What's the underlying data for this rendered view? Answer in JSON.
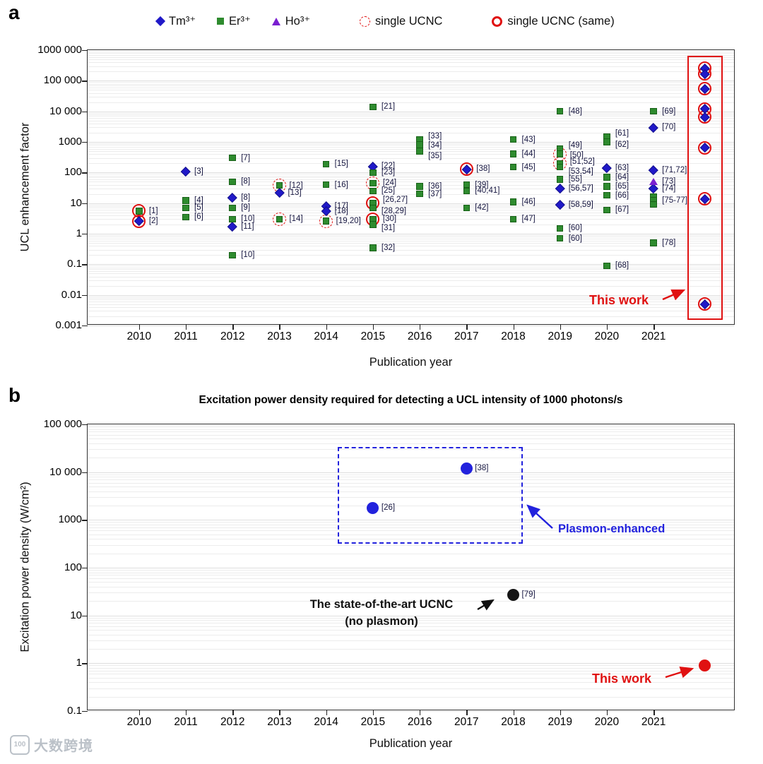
{
  "panel_labels": {
    "a": "a",
    "b": "b"
  },
  "watermark": {
    "logo": "100",
    "text": "大数跨境"
  },
  "chart_data": [
    {
      "id": "a",
      "type": "scatter",
      "xlabel": "Publication year",
      "ylabel": "UCL enhancement factor",
      "ylog": true,
      "ylim": [
        0.001,
        1000000
      ],
      "xlim": [
        2008.9,
        2022.75
      ],
      "xticks": [
        2010,
        2011,
        2012,
        2013,
        2014,
        2015,
        2016,
        2017,
        2018,
        2019,
        2020,
        2021
      ],
      "ytick_labels": [
        "1000 000",
        "100 000",
        "10 000",
        "1000",
        "100",
        "10",
        "1",
        "0.1",
        "0.01",
        "0.001"
      ],
      "grid": true,
      "legend_position": "top",
      "legend": [
        {
          "label": "Tm³⁺",
          "marker": "diamond",
          "color": "#2019c8"
        },
        {
          "label": "Er³⁺",
          "marker": "square",
          "color": "#2e8b2e"
        },
        {
          "label": "Ho³⁺",
          "marker": "triangle",
          "color": "#7a1fd0"
        },
        {
          "label": "single UCNC",
          "marker": "dashed-red-circle",
          "color": "#e01111"
        },
        {
          "label": "single UCNC (same)",
          "marker": "solid-red-circle",
          "color": "#e01111"
        }
      ],
      "annotations": [
        {
          "text": "This work",
          "color": "#e01111"
        }
      ],
      "series": [
        {
          "name": "Tm3+",
          "slug": "tm-point",
          "marker": "diamond",
          "color": "#2019c8",
          "points": [
            {
              "x": 2010,
              "y": 2.6,
              "ref": "[2]",
              "circle": "solid"
            },
            {
              "x": 2011,
              "y": 110,
              "ref": "[3]"
            },
            {
              "x": 2012,
              "y": 15,
              "ref": "[8]"
            },
            {
              "x": 2012,
              "y": 1.7,
              "ref": "[11]"
            },
            {
              "x": 2013,
              "y": 22,
              "ref": "[13]"
            },
            {
              "x": 2014,
              "y": 8,
              "ref": "[17]"
            },
            {
              "x": 2014,
              "y": 5.5,
              "ref": "[18]"
            },
            {
              "x": 2015,
              "y": 160,
              "ref": "[22]"
            },
            {
              "x": 2017,
              "y": 130,
              "ref": "[38]",
              "circle": "solid"
            },
            {
              "x": 2019,
              "y": 30,
              "ref": "[56,57]"
            },
            {
              "x": 2019,
              "y": 9,
              "ref": "[58,59]"
            },
            {
              "x": 2020,
              "y": 140,
              "ref": "[63]"
            },
            {
              "x": 2021,
              "y": 3000,
              "ref": "[70]"
            },
            {
              "x": 2021,
              "y": 120,
              "ref": "[71,72]"
            },
            {
              "x": 2021,
              "y": 30,
              "ref": "[74]"
            }
          ]
        },
        {
          "name": "Er3+",
          "slug": "er-point",
          "marker": "square",
          "color": "#2e8b2e",
          "points": [
            {
              "x": 2010,
              "y": 5.5,
              "ref": "[1]",
              "circle": "solid"
            },
            {
              "x": 2011,
              "y": 12,
              "ref": "[4]"
            },
            {
              "x": 2011,
              "y": 7,
              "ref": "[5]"
            },
            {
              "x": 2011,
              "y": 3.5,
              "ref": "[6]"
            },
            {
              "x": 2012,
              "y": 300,
              "ref": "[7]"
            },
            {
              "x": 2012,
              "y": 50,
              "ref": "[8]"
            },
            {
              "x": 2012,
              "y": 7,
              "ref": "[9]"
            },
            {
              "x": 2012,
              "y": 3,
              "ref": "[10]"
            },
            {
              "x": 2012,
              "y": 0.2,
              "ref": "[10]"
            },
            {
              "x": 2013,
              "y": 38,
              "ref": "[12]",
              "circle": "dashed"
            },
            {
              "x": 2013,
              "y": 3,
              "ref": "[14]",
              "circle": "dashed"
            },
            {
              "x": 2014,
              "y": 190,
              "ref": "[15]"
            },
            {
              "x": 2014,
              "y": 40,
              "ref": "[16]"
            },
            {
              "x": 2014,
              "y": 2.6,
              "ref": "[19,20]",
              "circle": "dashed"
            },
            {
              "x": 2015,
              "y": 14000,
              "ref": "[21]"
            },
            {
              "x": 2015,
              "y": 100,
              "ref": "[23]"
            },
            {
              "x": 2015,
              "y": 45,
              "ref": "[24]",
              "circle": "dashed"
            },
            {
              "x": 2015,
              "y": 25,
              "ref": "[25]"
            },
            {
              "x": 2015,
              "y": 10,
              "ref": "[26,27]",
              "circle": "solid",
              "dy": -5
            },
            {
              "x": 2015,
              "y": 7,
              "ref": "[28,29]",
              "dy": 5
            },
            {
              "x": 2015,
              "y": 3,
              "ref": "[30]",
              "circle": "solid"
            },
            {
              "x": 2015,
              "y": 2,
              "ref": "[31]",
              "dy": 5
            },
            {
              "x": 2015,
              "y": 0.35,
              "ref": "[32]"
            },
            {
              "x": 2016,
              "y": 1200,
              "ref": "[33]",
              "dy": -5
            },
            {
              "x": 2016,
              "y": 800,
              "ref": "[34]",
              "dy": 1
            },
            {
              "x": 2016,
              "y": 500,
              "ref": "[35]",
              "dy": 7
            },
            {
              "x": 2016,
              "y": 35,
              "ref": "[36]"
            },
            {
              "x": 2016,
              "y": 20,
              "ref": "[37]"
            },
            {
              "x": 2017,
              "y": 40,
              "ref": "[39]"
            },
            {
              "x": 2017,
              "y": 25,
              "ref": "[40,41]"
            },
            {
              "x": 2017,
              "y": 7,
              "ref": "[42]"
            },
            {
              "x": 2018,
              "y": 1200,
              "ref": "[43]"
            },
            {
              "x": 2018,
              "y": 400,
              "ref": "[44]"
            },
            {
              "x": 2018,
              "y": 150,
              "ref": "[45]"
            },
            {
              "x": 2018,
              "y": 11,
              "ref": "[46]"
            },
            {
              "x": 2018,
              "y": 3,
              "ref": "[47]"
            },
            {
              "x": 2019,
              "y": 10000,
              "ref": "[48]"
            },
            {
              "x": 2019,
              "y": 600,
              "ref": "[49]",
              "dy": -5
            },
            {
              "x": 2019,
              "y": 400,
              "ref": "[50]",
              "circle": "dashed",
              "dy": 2
            },
            {
              "x": 2019,
              "y": 200,
              "ref": "[51,52]",
              "circle": "dashed",
              "dy": -2
            },
            {
              "x": 2019,
              "y": 150,
              "ref": "[53,54]",
              "dy": 6
            },
            {
              "x": 2019,
              "y": 60,
              "ref": "[55]"
            },
            {
              "x": 2019,
              "y": 1.5,
              "ref": "[60]"
            },
            {
              "x": 2019,
              "y": 0.7,
              "ref": "[60]"
            },
            {
              "x": 2020,
              "y": 1500,
              "ref": "[61]",
              "dy": -4
            },
            {
              "x": 2020,
              "y": 1000,
              "ref": "[62]",
              "dy": 4
            },
            {
              "x": 2020,
              "y": 70,
              "ref": "[64]"
            },
            {
              "x": 2020,
              "y": 35,
              "ref": "[65]"
            },
            {
              "x": 2020,
              "y": 18,
              "ref": "[66]"
            },
            {
              "x": 2020,
              "y": 6,
              "ref": "[67]"
            },
            {
              "x": 2020,
              "y": 0.09,
              "ref": "[68]"
            },
            {
              "x": 2021,
              "y": 10000,
              "ref": "[69]"
            },
            {
              "x": 2021,
              "y": 16,
              "ref": ""
            },
            {
              "x": 2021,
              "y": 12,
              "ref": "[75-77]"
            },
            {
              "x": 2021,
              "y": 9,
              "ref": ""
            },
            {
              "x": 2021,
              "y": 0.5,
              "ref": "[78]"
            }
          ]
        },
        {
          "name": "Ho3+",
          "slug": "ho-point",
          "marker": "triangle",
          "color": "#7a1fd0",
          "points": [
            {
              "x": 2021,
              "y": 50,
              "ref": "[73]"
            }
          ]
        }
      ],
      "this_work": {
        "x": 2022.1,
        "marker": "diamond",
        "color": "#2019c8",
        "circle": "solid",
        "box_y": [
          0.0015,
          650000
        ],
        "points": [
          260000,
          170000,
          55000,
          12000,
          6500,
          650,
          14,
          0.005
        ]
      }
    },
    {
      "id": "b",
      "type": "scatter",
      "title": "Excitation power density required for detecting a UCL intensity of 1000 photons/s",
      "xlabel": "Publication year",
      "ylabel": "Excitation power density (W/cm²)",
      "ylog": true,
      "ylim": [
        0.1,
        100000
      ],
      "xlim": [
        2008.9,
        2022.75
      ],
      "xticks": [
        2010,
        2011,
        2012,
        2013,
        2014,
        2015,
        2016,
        2017,
        2018,
        2019,
        2020,
        2021
      ],
      "ytick_labels": [
        "100 000",
        "10 000",
        "1000",
        "100",
        "10",
        "1",
        "0.1"
      ],
      "grid": true,
      "dashed_box": {
        "x": [
          2014.25,
          2018.2
        ],
        "y": [
          320,
          34000
        ],
        "color": "#2222dd"
      },
      "annotations": [
        {
          "text": "Plasmon-enhanced",
          "color": "#2222dd"
        },
        {
          "text": "The state-of-the-art UCNC",
          "color": "#111111"
        },
        {
          "text": "(no plasmon)",
          "color": "#111111"
        },
        {
          "text": "This work",
          "color": "#e01111"
        }
      ],
      "series": [
        {
          "name": "Plasmon-enhanced UCNC",
          "slug": "plasmon-point",
          "marker": "circle",
          "color": "#2222dd",
          "points": [
            {
              "x": 2015,
              "y": 1800,
              "ref": "[26]"
            },
            {
              "x": 2017,
              "y": 12000,
              "ref": "[38]"
            }
          ]
        },
        {
          "name": "State-of-the-art UCNC (no plasmon)",
          "slug": "ucnc-point",
          "marker": "circle",
          "color": "#151515",
          "points": [
            {
              "x": 2018,
              "y": 27,
              "ref": "[79]"
            }
          ]
        },
        {
          "name": "This work",
          "slug": "this-work-point",
          "marker": "circle",
          "color": "#e01111",
          "points": [
            {
              "x": 2022.1,
              "y": 0.9,
              "ref": ""
            }
          ]
        }
      ]
    }
  ]
}
